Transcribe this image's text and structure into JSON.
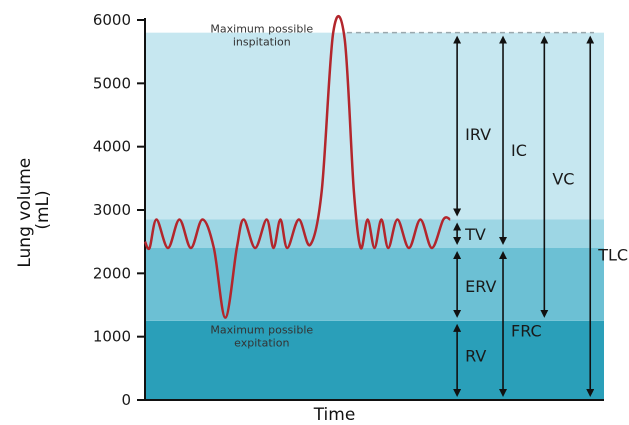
{
  "chart_data": {
    "type": "line",
    "xlabel": "Time",
    "ylabel": "Lung volume (mL)",
    "ylabel_lines": [
      "Lung volume",
      "(mL)"
    ],
    "ylim": [
      0,
      6000
    ],
    "yticks": [
      0,
      1000,
      2000,
      3000,
      4000,
      5000,
      6000
    ],
    "ytick_labels": [
      "0",
      "1000",
      "2000",
      "3000",
      "4000",
      "5000",
      "6000"
    ],
    "xlim": [
      0,
      100
    ],
    "grid": false,
    "series": [
      {
        "color": "#b3262c",
        "x": [
          0,
          1,
          2.5,
          5,
          7.5,
          10,
          12.5,
          15,
          17.5,
          20,
          21.5,
          24,
          26.5,
          28,
          29.5,
          31,
          33.5,
          36,
          38.5,
          41,
          43.5,
          45.5,
          47,
          48.5,
          50,
          51.5,
          53,
          55,
          57.5,
          60,
          62.5,
          65,
          66.5
        ],
        "values": [
          2500,
          2400,
          2850,
          2400,
          2850,
          2400,
          2850,
          2400,
          1300,
          2400,
          2850,
          2400,
          2850,
          2400,
          2850,
          2400,
          2850,
          2450,
          3300,
          5800,
          5700,
          3300,
          2400,
          2850,
          2400,
          2850,
          2400,
          2850,
          2400,
          2850,
          2400,
          2850,
          2850
        ]
      }
    ],
    "bands": [
      {
        "from": 0,
        "to": 1250,
        "color": "#2a9fb9"
      },
      {
        "from": 1250,
        "to": 2400,
        "color": "#6cc0d4"
      },
      {
        "from": 2400,
        "to": 2850,
        "color": "#9dd6e4"
      },
      {
        "from": 2850,
        "to": 5800,
        "color": "#c6e7f0"
      }
    ],
    "reference_lines": [
      {
        "y": 5800,
        "style": "dashed",
        "color": "#9aa8ad"
      }
    ],
    "annotations": [
      {
        "lines": [
          "Maximum possible",
          "inspitation"
        ],
        "x": 20,
        "y": 5800
      },
      {
        "lines": [
          "Maximum possible",
          "expitation"
        ],
        "x": 20,
        "y": 1050
      }
    ],
    "measures": [
      {
        "label": "IRV",
        "x": 68,
        "from": 2850,
        "to": 5800,
        "label_at": 4200,
        "label_side": "right"
      },
      {
        "label": "TV",
        "x": 68,
        "from": 2400,
        "to": 2850,
        "label_at": 2620,
        "label_side": "right"
      },
      {
        "label": "ERV",
        "x": 68,
        "from": 1250,
        "to": 2400,
        "label_at": 1800,
        "label_side": "right"
      },
      {
        "label": "RV",
        "x": 68,
        "from": 0,
        "to": 1250,
        "label_at": 700,
        "label_side": "right"
      },
      {
        "label": "IC",
        "x": 78,
        "from": 2400,
        "to": 5800,
        "label_at": 3950,
        "label_side": "right"
      },
      {
        "label": "FRC",
        "x": 78,
        "from": 0,
        "to": 2400,
        "label_at": 1100,
        "label_side": "right"
      },
      {
        "label": "VC",
        "x": 87,
        "from": 1250,
        "to": 5800,
        "label_at": 3500,
        "label_side": "right"
      },
      {
        "label": "TLC",
        "x": 97,
        "from": 0,
        "to": 5800,
        "label_at": 2300,
        "label_side": "right"
      }
    ]
  }
}
